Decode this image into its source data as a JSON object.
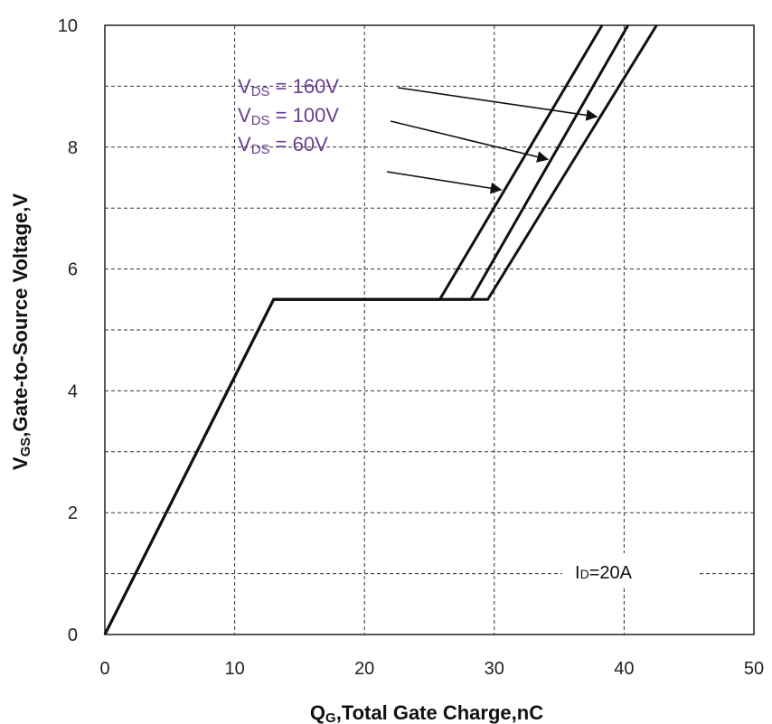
{
  "chart_data": {
    "type": "line",
    "xlabel": {
      "main": "Q",
      "sub": "G",
      "rest": ",Total  Gate  Charge,nC"
    },
    "ylabel": {
      "main": "V",
      "sub": "GS",
      "rest": ",Gate-to-Source  Voltage,V"
    },
    "xlim": [
      0,
      50
    ],
    "ylim": [
      0,
      10
    ],
    "x_ticks": [
      0,
      10,
      20,
      30,
      40,
      50
    ],
    "y_ticks": [
      0,
      2,
      4,
      6,
      8,
      10
    ],
    "grid": true,
    "series": [
      {
        "name": "V_DS = 160V",
        "label_main": "V",
        "label_sub": "DS",
        "label_rest": " = 160V",
        "points": [
          [
            0,
            0
          ],
          [
            13,
            5.5
          ],
          [
            29.5,
            5.5
          ],
          [
            42.5,
            10
          ]
        ]
      },
      {
        "name": "V_DS = 100V",
        "label_main": "V",
        "label_sub": "DS",
        "label_rest": " = 100V",
        "points": [
          [
            0,
            0
          ],
          [
            13,
            5.5
          ],
          [
            28.2,
            5.5
          ],
          [
            40.3,
            10
          ]
        ]
      },
      {
        "name": "V_DS = 60V",
        "label_main": "V",
        "label_sub": "DS",
        "label_rest": " = 60V",
        "points": [
          [
            0,
            0
          ],
          [
            13,
            5.5
          ],
          [
            25.8,
            5.5
          ],
          [
            38.3,
            10
          ]
        ]
      }
    ],
    "annotation": {
      "main": "I",
      "sub": "D",
      "rest": "=20A",
      "x": 40,
      "y": 1
    }
  }
}
